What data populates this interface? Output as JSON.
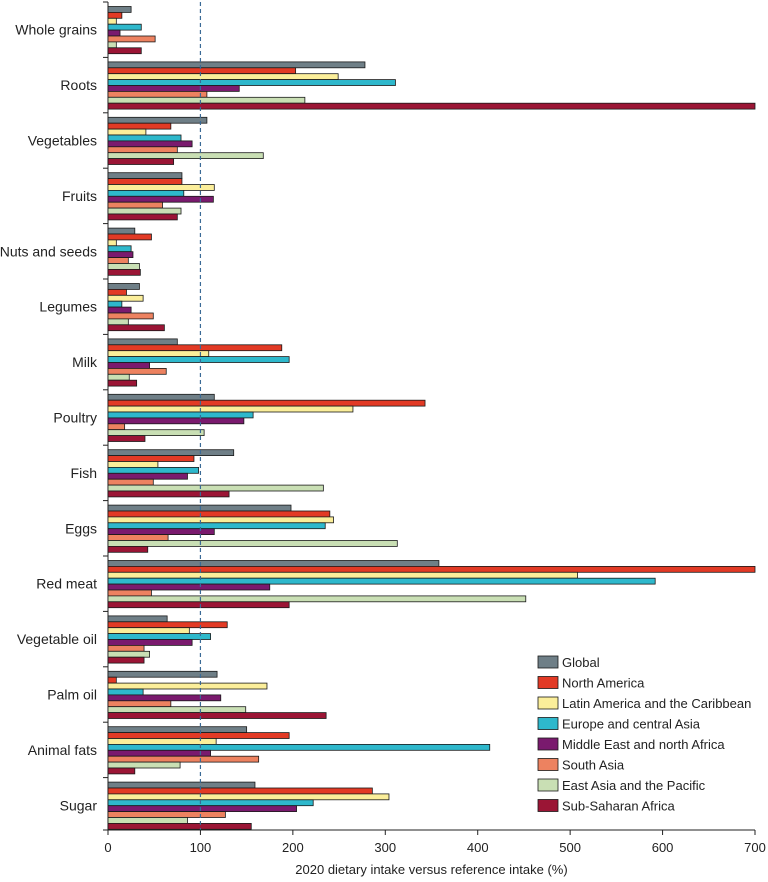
{
  "chart_data": {
    "type": "bar",
    "orientation": "horizontal",
    "title": "",
    "xlabel": "2020 dietary intake versus reference intake (%)",
    "ylabel": "",
    "xlim": [
      0,
      700
    ],
    "xticks": [
      0,
      100,
      200,
      300,
      400,
      500,
      600,
      700
    ],
    "reference_line": 100,
    "legend_position": "bottom-right",
    "categories": [
      "Whole grains",
      "Roots",
      "Vegetables",
      "Fruits",
      "Nuts and seeds",
      "Legumes",
      "Milk",
      "Poultry",
      "Fish",
      "Eggs",
      "Red meat",
      "Vegetable oil",
      "Palm oil",
      "Animal fats",
      "Sugar"
    ],
    "series": [
      {
        "name": "Global",
        "color": "#6f7f87",
        "values": [
          25,
          278,
          107,
          80,
          29,
          34,
          75,
          115,
          136,
          198,
          358,
          64,
          118,
          150,
          159
        ]
      },
      {
        "name": "North America",
        "color": "#e23a25",
        "values": [
          15,
          203,
          68,
          80,
          47,
          20,
          188,
          343,
          93,
          240,
          700,
          129,
          9,
          196,
          286
        ]
      },
      {
        "name": "Latin America and the Caribbean",
        "color": "#fbee9a",
        "values": [
          9,
          249,
          41,
          115,
          9,
          38,
          109,
          265,
          54,
          244,
          508,
          88,
          172,
          117,
          304
        ]
      },
      {
        "name": "Europe and central Asia",
        "color": "#2eb8cc",
        "values": [
          36,
          311,
          79,
          82,
          25,
          15,
          196,
          157,
          98,
          235,
          592,
          111,
          38,
          413,
          222
        ]
      },
      {
        "name": "Middle East and north Africa",
        "color": "#7a1a6e",
        "values": [
          13,
          142,
          91,
          114,
          27,
          25,
          45,
          147,
          86,
          115,
          175,
          91,
          122,
          111,
          204
        ]
      },
      {
        "name": "South Asia",
        "color": "#ed8260",
        "values": [
          51,
          107,
          75,
          59,
          22,
          49,
          63,
          18,
          49,
          65,
          47,
          39,
          68,
          163,
          127
        ]
      },
      {
        "name": "East Asia and the Pacific",
        "color": "#c9dfb4",
        "values": [
          9,
          213,
          168,
          79,
          34,
          22,
          23,
          104,
          233,
          313,
          452,
          45,
          149,
          78,
          86
        ]
      },
      {
        "name": "Sub-Saharan Africa",
        "color": "#9b1535",
        "values": [
          36,
          700,
          71,
          75,
          35,
          61,
          31,
          40,
          131,
          43,
          196,
          39,
          236,
          29,
          155
        ]
      }
    ]
  }
}
